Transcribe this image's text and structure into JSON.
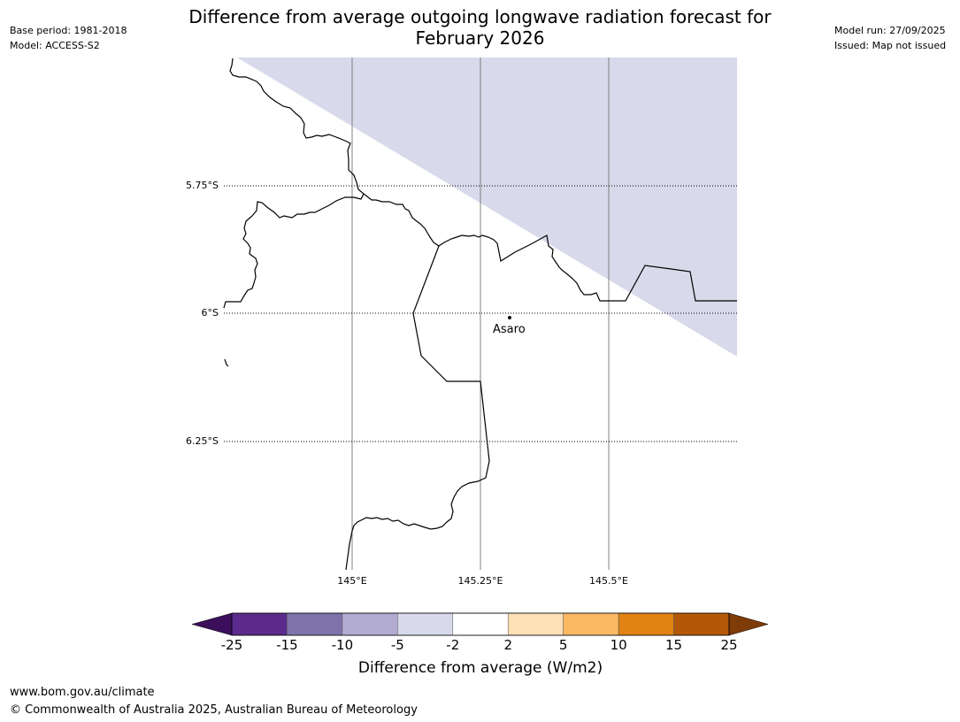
{
  "meta": {
    "base_period": "Base period: 1981-2018",
    "model": "Model: ACCESS-S2",
    "model_run": "Model run: 27/09/2025",
    "issued": "Issued: Map not issued"
  },
  "title": {
    "line1": "Difference from average outgoing longwave radiation forecast for",
    "line2": "February 2026"
  },
  "map": {
    "lat_labels": [
      "5.75°S",
      "6°S",
      "6.25°S"
    ],
    "lon_labels": [
      "145°E",
      "145.25°E",
      "145.5°E"
    ],
    "place": "Asaro",
    "shade_color": "#d8d9ea"
  },
  "legend": {
    "tick_labels": [
      "-25",
      "-15",
      "-10",
      "-5",
      "-2",
      "2",
      "5",
      "10",
      "15",
      "25"
    ],
    "colors": [
      "#3b0f5c",
      "#5b2a8c",
      "#8073ac",
      "#b2abd2",
      "#d8daeb",
      "#ffffff",
      "#fee0b6",
      "#fdb863",
      "#e08214",
      "#b35806",
      "#7f3b08"
    ],
    "title": "Difference from average (W/m2)"
  },
  "footer": {
    "url": "www.bom.gov.au/climate",
    "copyright": "© Commonwealth of Australia 2025, Australian Bureau of Meteorology"
  }
}
